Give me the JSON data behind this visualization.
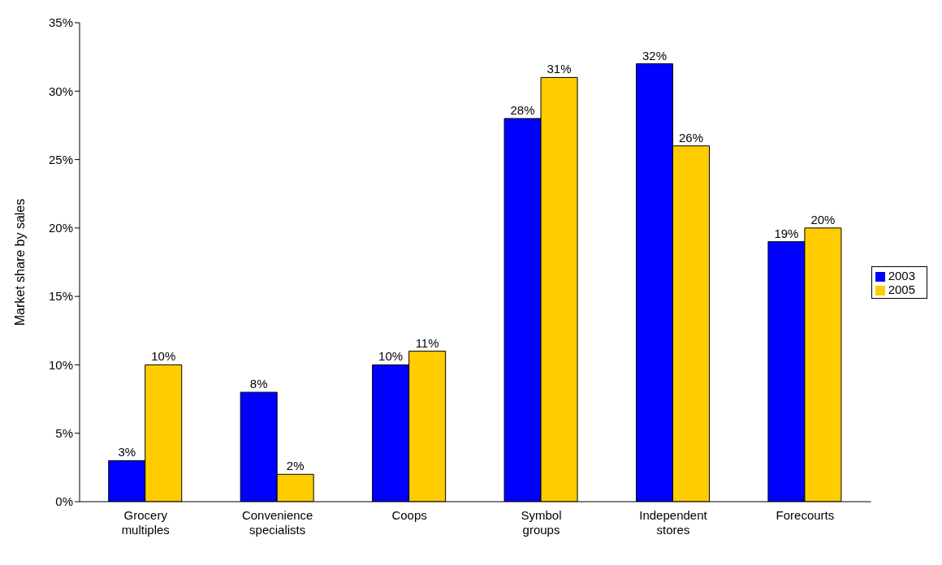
{
  "chart_data": {
    "type": "bar",
    "ylabel": "Market share by sales",
    "categories": [
      "Grocery multiples",
      "Convenience specialists",
      "Coops",
      "Symbol groups",
      "Independent stores",
      "Forecourts"
    ],
    "series": [
      {
        "name": "2003",
        "color": "#0000ff",
        "values": [
          3,
          8,
          10,
          28,
          32,
          19
        ],
        "value_labels": [
          "3%",
          "8%",
          "10%",
          "28%",
          "32%",
          "19%"
        ]
      },
      {
        "name": "2005",
        "color": "#ffcc00",
        "values": [
          10,
          2,
          11,
          31,
          26,
          20
        ],
        "value_labels": [
          "10%",
          "2%",
          "11%",
          "31%",
          "26%",
          "20%"
        ]
      }
    ],
    "ylim": [
      0,
      35
    ],
    "yticks": [
      {
        "value": 0,
        "label": "0%"
      },
      {
        "value": 5,
        "label": "5%"
      },
      {
        "value": 10,
        "label": "10%"
      },
      {
        "value": 15,
        "label": "15%"
      },
      {
        "value": 20,
        "label": "20%"
      },
      {
        "value": 25,
        "label": "25%"
      },
      {
        "value": 30,
        "label": "30%"
      },
      {
        "value": 35,
        "label": "35%"
      }
    ],
    "grid": false,
    "legend": "right"
  }
}
